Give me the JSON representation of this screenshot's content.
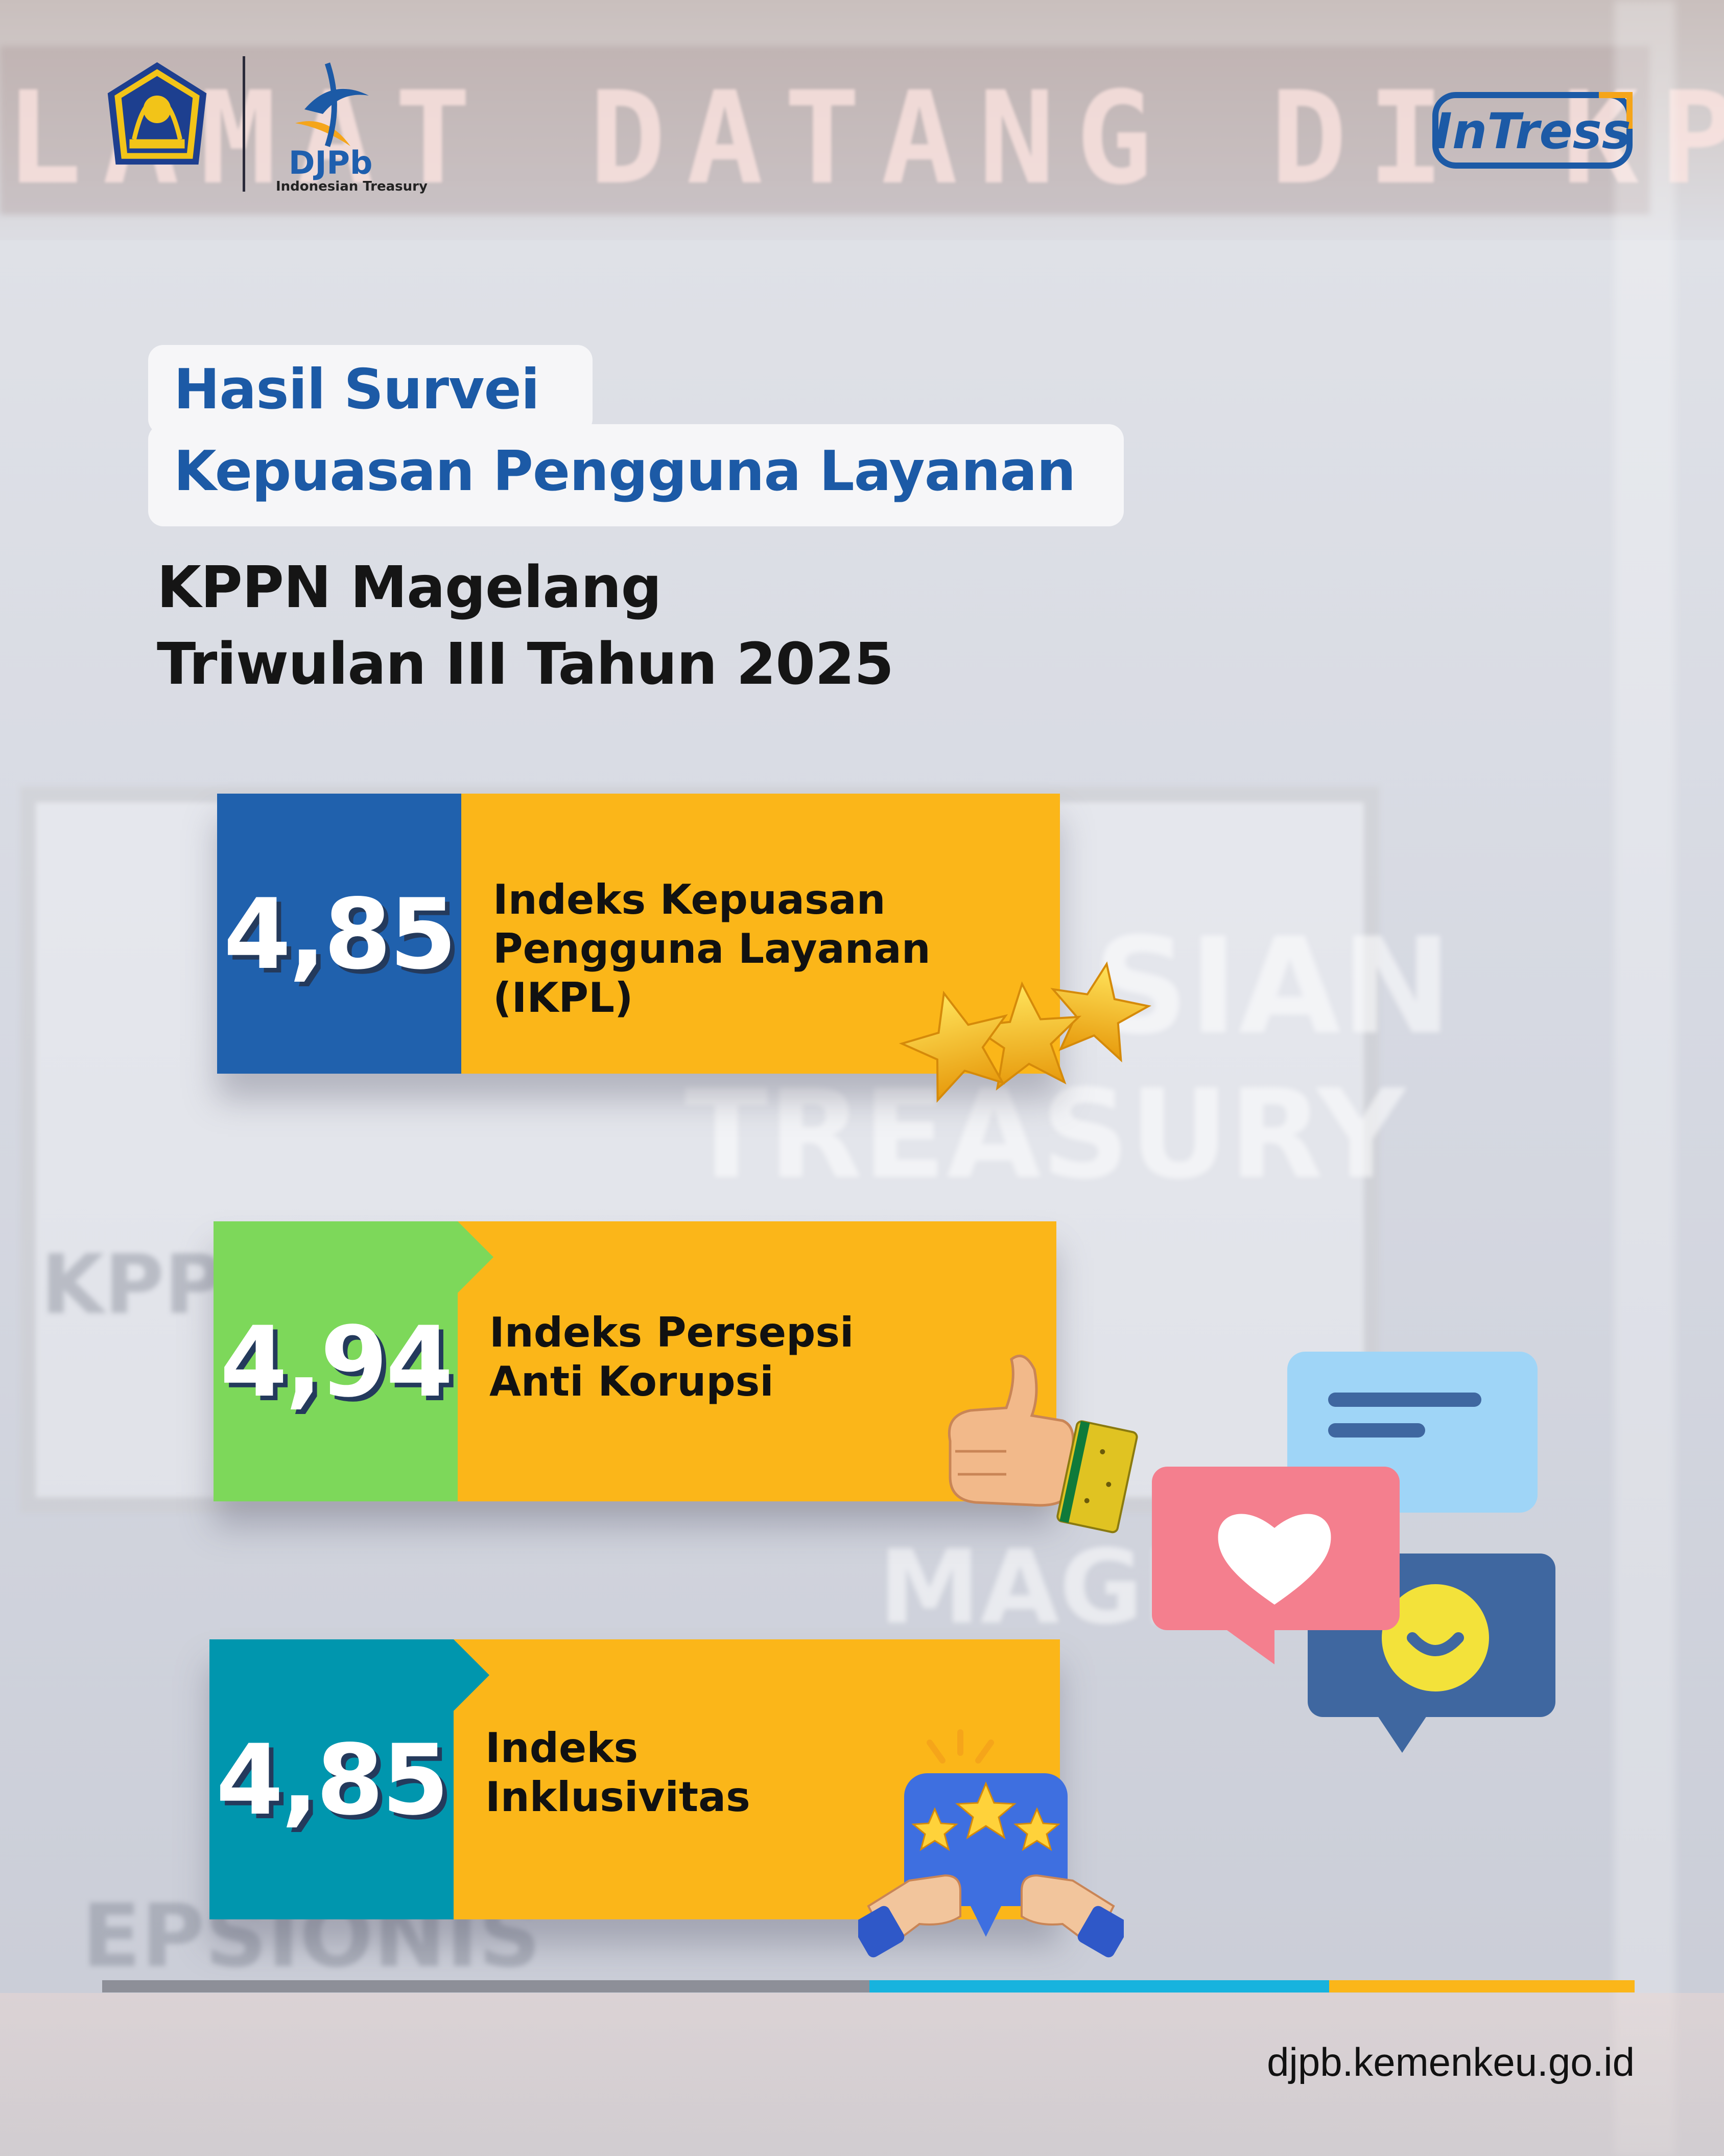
{
  "background": {
    "led_sign_text": "LAMAT DATANG DI KPPN MAG",
    "panel_texts": [
      "SIAN",
      "TREASURY",
      "KPP",
      "MAGEL",
      "EPSIONIS"
    ]
  },
  "header": {
    "djpb_logo_text": "DJPb",
    "djpb_logo_subtitle": "Indonesian Treasury",
    "intress_logo_text": "InTress"
  },
  "title": {
    "line1": "Hasil Survei",
    "line2": "Kepuasan Pengguna Layanan",
    "sub1": "KPPN Magelang",
    "sub2": "Triwulan III Tahun 2025"
  },
  "cards": [
    {
      "value": "4,85",
      "label_lines": [
        "Indeks Kepuasan",
        "Pengguna Layanan",
        "(IKPL)"
      ],
      "color": "#2061ad",
      "icon": "three-stars-icon"
    },
    {
      "value": "4,94",
      "label_lines": [
        "Indeks Persepsi",
        "Anti Korupsi"
      ],
      "color": "#7dd85a",
      "icon": "thumbs-up-icon"
    },
    {
      "value": "4,85",
      "label_lines": [
        "Indeks",
        "Inklusivitas"
      ],
      "color": "#0096ae",
      "icon": "rating-handshake-icon"
    }
  ],
  "colors": {
    "label_background": "#fbb619",
    "title_blue": "#1c5aa6",
    "footer_gray": "#8d8f98",
    "footer_blue": "#17b3de",
    "footer_yellow": "#fbb619"
  },
  "decor_icons": [
    "chat-bubble-icon",
    "heart-bubble-icon",
    "smile-bubble-icon"
  ],
  "footer": {
    "website": "djpb.kemenkeu.go.id"
  }
}
